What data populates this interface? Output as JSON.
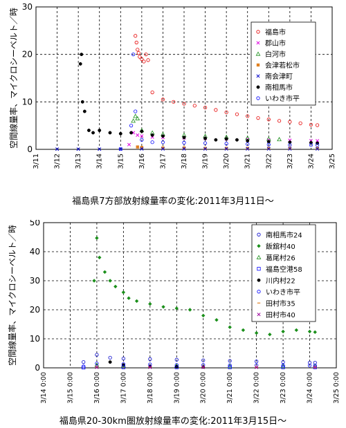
{
  "chart_data": [
    {
      "type": "scatter",
      "caption": "福島県7方部放射線量率の変化:2011年3月11日〜",
      "ylabel": "空間線量率、マイクロシーベルト／時",
      "xlabel": "",
      "xlim": [
        "3/11",
        "3/25"
      ],
      "ylim": [
        0,
        30
      ],
      "yticks": [
        0,
        10,
        20,
        30
      ],
      "xticks": [
        "3/11",
        "3/12",
        "3/13",
        "3/14",
        "3/15",
        "3/16",
        "3/17",
        "3/18",
        "3/19",
        "3/20",
        "3/21",
        "3/22",
        "3/23",
        "3/24",
        "3/25"
      ],
      "grid": true,
      "legend_position": "top-right",
      "series": [
        {
          "name": "福島市",
          "color": "#e60000",
          "marker": "circle-open",
          "points": [
            [
              4.7,
              23.9
            ],
            [
              4.75,
              22.5
            ],
            [
              4.8,
              21.0
            ],
            [
              4.85,
              20.3
            ],
            [
              4.9,
              19.5
            ],
            [
              5.0,
              19.0
            ],
            [
              5.1,
              18.5
            ],
            [
              5.2,
              20.0
            ],
            [
              5.3,
              18.8
            ],
            [
              5.5,
              12.0
            ],
            [
              6.0,
              10.5
            ],
            [
              6.5,
              10.0
            ],
            [
              7.0,
              9.6
            ],
            [
              7.5,
              9.2
            ],
            [
              8.0,
              8.8
            ],
            [
              8.5,
              8.3
            ],
            [
              9.0,
              7.8
            ],
            [
              9.5,
              7.4
            ],
            [
              10.0,
              7.0
            ],
            [
              10.5,
              6.6
            ],
            [
              11.0,
              6.3
            ],
            [
              11.5,
              6.0
            ],
            [
              12.0,
              5.8
            ],
            [
              12.5,
              5.5
            ],
            [
              13.0,
              5.2
            ],
            [
              13.3,
              5.1
            ]
          ]
        },
        {
          "name": "郡山市",
          "color": "#e000e0",
          "marker": "cross",
          "points": [
            [
              4.4,
              1.0
            ],
            [
              4.6,
              3.5
            ],
            [
              4.8,
              3.0
            ],
            [
              5.0,
              2.8
            ],
            [
              5.5,
              2.6
            ],
            [
              6.0,
              2.5
            ],
            [
              7.0,
              2.4
            ],
            [
              8.0,
              2.3
            ],
            [
              9.0,
              2.2
            ],
            [
              10.0,
              2.1
            ],
            [
              11.0,
              2.0
            ],
            [
              12.0,
              1.9
            ],
            [
              13.0,
              1.8
            ],
            [
              13.3,
              1.8
            ]
          ]
        },
        {
          "name": "白河市",
          "color": "#1a8f1a",
          "marker": "triangle",
          "points": [
            [
              4.6,
              6.0
            ],
            [
              4.7,
              7.0
            ],
            [
              4.8,
              6.5
            ],
            [
              5.0,
              4.0
            ],
            [
              5.5,
              3.5
            ],
            [
              6.0,
              3.2
            ],
            [
              7.0,
              3.0
            ],
            [
              8.0,
              2.8
            ],
            [
              9.0,
              2.6
            ],
            [
              10.0,
              2.4
            ],
            [
              11.0,
              2.2
            ],
            [
              11.5,
              2.1
            ]
          ]
        },
        {
          "name": "会津若松市",
          "color": "#e08020",
          "marker": "square",
          "points": [
            [
              4.8,
              0.5
            ],
            [
              5.0,
              0.4
            ],
            [
              6.0,
              0.3
            ],
            [
              7.0,
              0.3
            ],
            [
              8.0,
              0.2
            ],
            [
              9.0,
              0.2
            ],
            [
              10.0,
              0.2
            ],
            [
              11.0,
              0.2
            ],
            [
              12.0,
              0.2
            ],
            [
              13.3,
              0.2
            ]
          ]
        },
        {
          "name": "南会津町",
          "color": "#0000cc",
          "marker": "star",
          "points": [
            [
              1.0,
              0.05
            ],
            [
              2.0,
              0.05
            ],
            [
              3.0,
              0.05
            ],
            [
              4.0,
              0.05
            ],
            [
              5.0,
              0.1
            ],
            [
              6.0,
              0.1
            ],
            [
              7.0,
              0.1
            ],
            [
              8.0,
              0.1
            ],
            [
              9.0,
              0.1
            ],
            [
              10.0,
              0.1
            ],
            [
              11.0,
              0.1
            ],
            [
              12.0,
              0.1
            ],
            [
              13.3,
              0.1
            ]
          ]
        },
        {
          "name": "南相馬市",
          "color": "#000000",
          "marker": "circle-filled",
          "points": [
            [
              2.1,
              18.0
            ],
            [
              2.15,
              20.0
            ],
            [
              2.2,
              10.0
            ],
            [
              2.3,
              8.0
            ],
            [
              2.5,
              4.0
            ],
            [
              2.7,
              3.5
            ],
            [
              3.0,
              4.0
            ],
            [
              3.5,
              3.5
            ],
            [
              4.0,
              3.3
            ],
            [
              4.5,
              3.5
            ],
            [
              5.0,
              3.8
            ],
            [
              5.5,
              3.0
            ],
            [
              6.0,
              2.8
            ],
            [
              7.0,
              2.5
            ],
            [
              8.0,
              2.3
            ],
            [
              8.5,
              2.0
            ],
            [
              9.0,
              2.2
            ],
            [
              9.5,
              2.0
            ],
            [
              10.0,
              1.8
            ],
            [
              11.0,
              1.6
            ],
            [
              12.0,
              1.5
            ],
            [
              13.0,
              1.4
            ],
            [
              13.3,
              1.3
            ]
          ]
        },
        {
          "name": "いわき市平",
          "color": "#0000ff",
          "marker": "circle-open",
          "points": [
            [
              4.0,
              0.1
            ],
            [
              4.5,
              5.0
            ],
            [
              4.6,
              20.0
            ],
            [
              4.7,
              8.0
            ],
            [
              5.0,
              2.0
            ],
            [
              5.5,
              1.5
            ],
            [
              6.0,
              1.5
            ],
            [
              7.0,
              1.4
            ],
            [
              8.0,
              1.3
            ],
            [
              9.0,
              1.2
            ],
            [
              10.0,
              1.1
            ],
            [
              11.0,
              1.0
            ],
            [
              12.0,
              0.9
            ],
            [
              13.0,
              0.9
            ],
            [
              13.3,
              0.9
            ]
          ]
        }
      ]
    },
    {
      "type": "scatter",
      "caption": "福島県20-30km圏放射線量率の変化:2011年3月15日〜",
      "ylabel": "空間線量率、マイクロシーベルト／時",
      "xlabel": "",
      "xlim": [
        "3/14 0:00",
        "3/25 0:00"
      ],
      "ylim": [
        0,
        50
      ],
      "yticks": [
        0,
        10,
        20,
        30,
        40,
        50
      ],
      "xticks": [
        "3/14 0:00",
        "3/15 0:00",
        "3/16 0:00",
        "3/17 0:00",
        "3/18 0:00",
        "3/19 0:00",
        "3/20 0:00",
        "3/21 0:00",
        "3/22 0:00",
        "3/23 0:00",
        "3/24 0:00",
        "3/25 0:00"
      ],
      "grid": true,
      "legend_position": "top-right",
      "series": [
        {
          "name": "南相馬市24",
          "color": "#0000cc",
          "marker": "circle-open",
          "points": [
            [
              1.5,
              2.0
            ],
            [
              2.0,
              4.5
            ],
            [
              2.5,
              3.5
            ],
            [
              3.0,
              3.2
            ],
            [
              4.0,
              3.0
            ],
            [
              5.0,
              2.8
            ],
            [
              6.0,
              2.6
            ],
            [
              7.0,
              2.4
            ],
            [
              8.0,
              2.2
            ],
            [
              9.0,
              2.0
            ],
            [
              10.0,
              1.8
            ],
            [
              10.2,
              1.8
            ]
          ]
        },
        {
          "name": "飯舘村40",
          "color": "#1a8f1a",
          "marker": "diamond",
          "points": [
            [
              1.9,
              30.0
            ],
            [
              2.0,
              44.7
            ],
            [
              2.1,
              38.0
            ],
            [
              2.3,
              33.0
            ],
            [
              2.5,
              30.0
            ],
            [
              2.7,
              28.0
            ],
            [
              3.0,
              26.0
            ],
            [
              3.2,
              24.0
            ],
            [
              3.5,
              23.0
            ],
            [
              4.0,
              22.0
            ],
            [
              4.5,
              21.0
            ],
            [
              5.0,
              20.5
            ],
            [
              5.5,
              20.0
            ],
            [
              6.0,
              18.0
            ],
            [
              6.5,
              16.5
            ],
            [
              7.0,
              14.0
            ],
            [
              7.5,
              13.0
            ],
            [
              8.0,
              12.0
            ],
            [
              8.5,
              11.5
            ],
            [
              9.0,
              12.5
            ],
            [
              9.5,
              13.0
            ],
            [
              10.0,
              12.5
            ],
            [
              10.2,
              12.3
            ]
          ]
        },
        {
          "name": "葛尾村26",
          "color": "#1a8f1a",
          "marker": "triangle",
          "points": [
            [
              2.0,
              1.0
            ],
            [
              3.0,
              0.8
            ],
            [
              5.0,
              0.7
            ],
            [
              7.0,
              0.6
            ],
            [
              9.0,
              0.6
            ],
            [
              10.2,
              0.5
            ]
          ]
        },
        {
          "name": "福島空港58",
          "color": "#0000ff",
          "marker": "square-open",
          "points": [
            [
              1.5,
              0.1
            ],
            [
              3.0,
              0.2
            ],
            [
              5.0,
              0.2
            ],
            [
              7.0,
              0.2
            ],
            [
              9.0,
              0.2
            ],
            [
              10.2,
              0.2
            ]
          ]
        },
        {
          "name": "川内村22",
          "color": "#000000",
          "marker": "circle-filled",
          "points": [
            [
              2.5,
              2.0
            ],
            [
              3.0,
              1.0
            ],
            [
              4.0,
              0.5
            ],
            [
              5.0,
              0.4
            ],
            [
              6.0,
              0.3
            ]
          ]
        },
        {
          "name": "いわき市平",
          "color": "#0000ff",
          "marker": "circle-open",
          "points": [
            [
              1.5,
              0.5
            ],
            [
              2.0,
              1.5
            ],
            [
              3.0,
              1.3
            ],
            [
              4.0,
              1.2
            ],
            [
              5.0,
              1.0
            ],
            [
              6.0,
              1.0
            ],
            [
              7.0,
              0.9
            ],
            [
              8.0,
              0.9
            ],
            [
              9.0,
              0.8
            ],
            [
              10.0,
              0.8
            ],
            [
              10.2,
              0.8
            ]
          ]
        },
        {
          "name": "田村市35",
          "color": "#e08020",
          "marker": "dash",
          "points": [
            [
              2.0,
              0.3
            ],
            [
              4.0,
              0.3
            ],
            [
              6.0,
              0.3
            ],
            [
              8.0,
              0.2
            ],
            [
              10.2,
              0.2
            ]
          ]
        },
        {
          "name": "田村市40",
          "color": "#9a009a",
          "marker": "cross",
          "points": [
            [
              2.0,
              0.2
            ],
            [
              4.0,
              0.2
            ],
            [
              6.0,
              0.2
            ],
            [
              8.0,
              0.2
            ],
            [
              10.2,
              0.2
            ]
          ]
        }
      ]
    }
  ]
}
